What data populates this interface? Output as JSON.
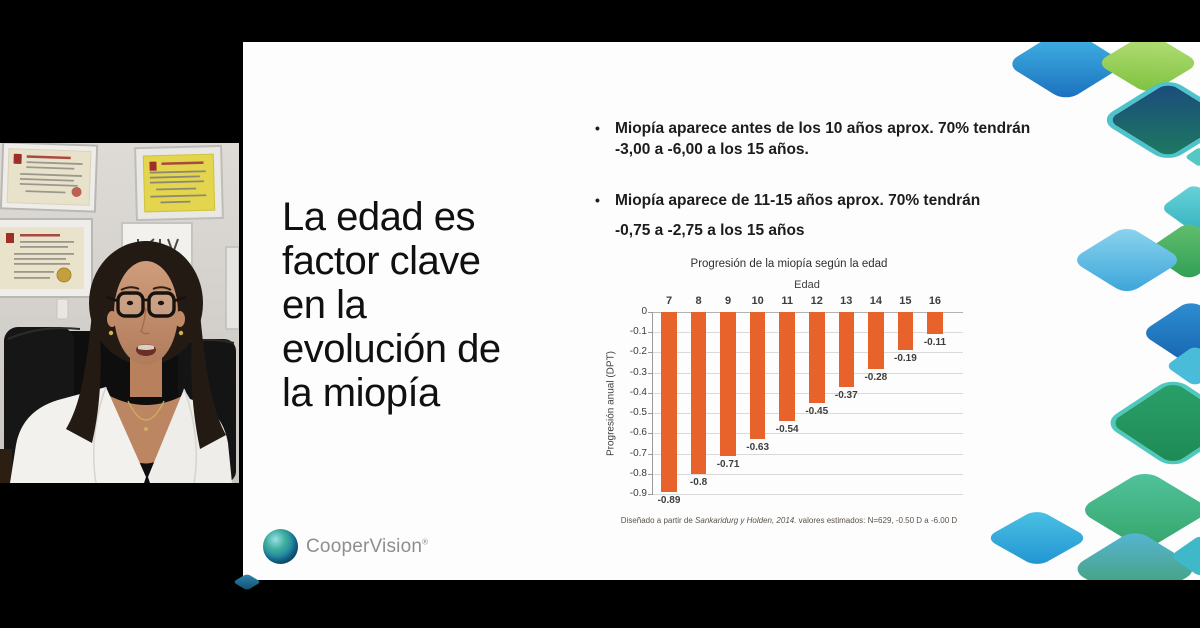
{
  "slide": {
    "title_lines": [
      "La edad es",
      "factor clave",
      "en la",
      "evolución de",
      "la miopía"
    ],
    "bullet_char": "•",
    "bullet_color": "#5b2d86",
    "bullets": [
      {
        "line1": "Miopía aparece antes de los 10 años aprox. 70% tendrán",
        "line2": "-3,00 a -6,00 a los 15 años."
      },
      {
        "line1": "Miopía aparece de 11-15 años aprox. 70% tendrán",
        "line2": "-0,75 a -2,75 a los 15 años"
      }
    ],
    "logo_text": "CooperVision",
    "logo_reg": "®"
  },
  "chart_data": {
    "type": "bar",
    "title": "Progresión de la miopía según la edad",
    "xlabel": "Edad",
    "ylabel": "Progresión anual (DPT)",
    "categories": [
      "7",
      "8",
      "9",
      "10",
      "11",
      "12",
      "13",
      "14",
      "15",
      "16"
    ],
    "values": [
      -0.89,
      -0.8,
      -0.71,
      -0.63,
      -0.54,
      -0.45,
      -0.37,
      -0.28,
      -0.19,
      -0.11
    ],
    "value_labels": [
      "-0.89",
      "-0.8",
      "-0.71",
      "-0.63",
      "-0.54",
      "-0.45",
      "-0.37",
      "-0.28",
      "-0.19",
      "-0.11"
    ],
    "ylim": [
      -0.9,
      0
    ],
    "yticks": [
      "0",
      "-0.1",
      "-0.2",
      "-0.3",
      "-0.4",
      "-0.5",
      "-0.6",
      "-0.7",
      "-0.8",
      "-0.9"
    ],
    "grid": true,
    "bar_color": "#E8622C",
    "footnote": {
      "prefix": "Diseñado a partir de ",
      "italic": "Sankaridurg y Holden, 2014.",
      "suffix": " valores estimados: N=629, -0.50 D a -6.00 D"
    }
  }
}
